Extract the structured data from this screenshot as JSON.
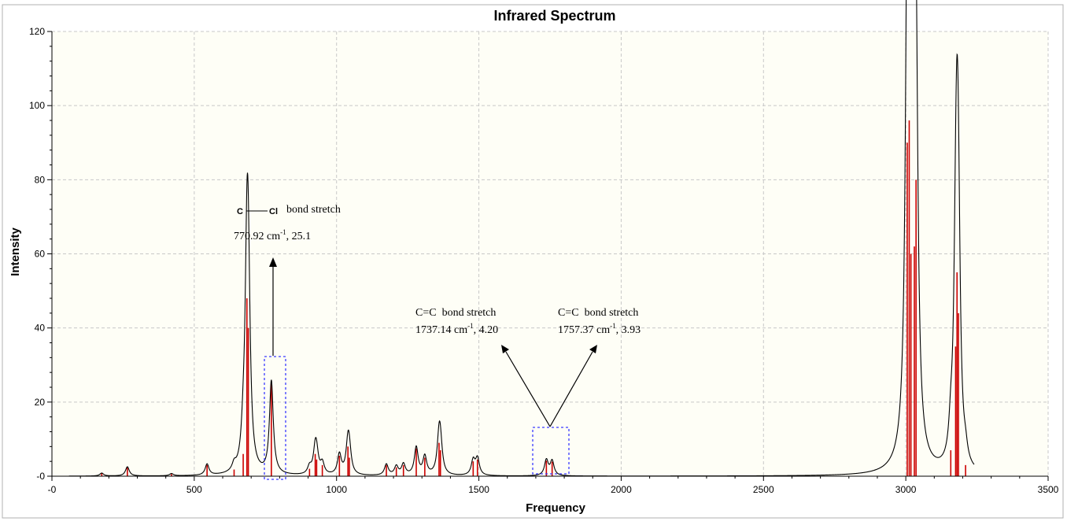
{
  "chart_data": {
    "type": "line",
    "title": "Infrared Spectrum",
    "xlabel": "Frequency",
    "ylabel": "Intensity",
    "xlim": [
      0,
      3500
    ],
    "ylim": [
      0,
      120
    ],
    "x_ticks": [
      {
        "value": 0,
        "label": "-0"
      },
      {
        "value": 500,
        "label": "500"
      },
      {
        "value": 1000,
        "label": "1000"
      },
      {
        "value": 1500,
        "label": "1500"
      },
      {
        "value": 2000,
        "label": "2000"
      },
      {
        "value": 2500,
        "label": "2500"
      },
      {
        "value": 3000,
        "label": "3000"
      },
      {
        "value": 3500,
        "label": "3500"
      }
    ],
    "y_ticks": [
      {
        "value": 0,
        "label": "-0"
      },
      {
        "value": 20,
        "label": "20"
      },
      {
        "value": 40,
        "label": "40"
      },
      {
        "value": 60,
        "label": "60"
      },
      {
        "value": 80,
        "label": "80"
      },
      {
        "value": 100,
        "label": "100"
      },
      {
        "value": 120,
        "label": "120"
      }
    ],
    "grid": true,
    "x_range_drawn": [
      60,
      3240
    ],
    "line_width": 8,
    "colors": {
      "background": "#fefef6",
      "spectrum": "#000000",
      "stick": "#cc0000",
      "grid": "#c8c8c8",
      "highlight_box": "#3a3aff"
    },
    "sticks": [
      {
        "x": 175,
        "y": 0.8
      },
      {
        "x": 265,
        "y": 2.5
      },
      {
        "x": 420,
        "y": 0.6
      },
      {
        "x": 545,
        "y": 3.0
      },
      {
        "x": 640,
        "y": 1.8
      },
      {
        "x": 672,
        "y": 6.0
      },
      {
        "x": 685,
        "y": 48.0
      },
      {
        "x": 690,
        "y": 40.0
      },
      {
        "x": 770.92,
        "y": 25.1
      },
      {
        "x": 905,
        "y": 2.0
      },
      {
        "x": 925,
        "y": 6.0
      },
      {
        "x": 930,
        "y": 4.5
      },
      {
        "x": 950,
        "y": 3.0
      },
      {
        "x": 1010,
        "y": 5.5
      },
      {
        "x": 1040,
        "y": 8.0
      },
      {
        "x": 1045,
        "y": 5.0
      },
      {
        "x": 1175,
        "y": 3.0
      },
      {
        "x": 1210,
        "y": 2.4
      },
      {
        "x": 1235,
        "y": 3.0
      },
      {
        "x": 1280,
        "y": 7.5
      },
      {
        "x": 1310,
        "y": 5.0
      },
      {
        "x": 1360,
        "y": 9.0
      },
      {
        "x": 1365,
        "y": 7.0
      },
      {
        "x": 1480,
        "y": 4.0
      },
      {
        "x": 1495,
        "y": 4.5
      },
      {
        "x": 1737.14,
        "y": 4.2
      },
      {
        "x": 1757.37,
        "y": 3.93
      },
      {
        "x": 3005,
        "y": 90.0
      },
      {
        "x": 3012,
        "y": 96.0
      },
      {
        "x": 3018,
        "y": 60.0
      },
      {
        "x": 3030,
        "y": 62.0
      },
      {
        "x": 3036,
        "y": 80.0
      },
      {
        "x": 3158,
        "y": 7.0
      },
      {
        "x": 3175,
        "y": 35.0
      },
      {
        "x": 3180,
        "y": 55.0
      },
      {
        "x": 3185,
        "y": 44.0
      },
      {
        "x": 3210,
        "y": 3.0
      }
    ],
    "annotations": [
      {
        "bond_left": "C",
        "bond_right": "Cl",
        "bond_suffix": "bond stretch",
        "value_main": "770.92 cm",
        "value_sup": "-1",
        "value_rest": ", 25.1"
      },
      {
        "bond_text": "C=C  bond stretch",
        "value_main": "1737.14 cm",
        "value_sup": "-1",
        "value_rest": ", 4.20"
      },
      {
        "bond_text": "C=C  bond stretch",
        "value_main": "1757.37 cm",
        "value_sup": "-1",
        "value_rest": ", 3.93"
      }
    ]
  }
}
